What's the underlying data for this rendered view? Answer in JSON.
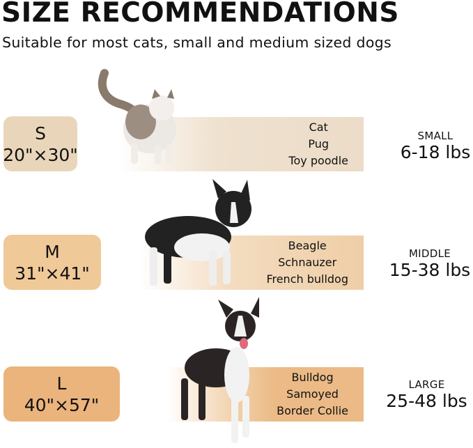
{
  "header": {
    "title": "SIZE RECOMMENDATIONS",
    "subtitle": "Suitable for most cats, small and medium sized dogs"
  },
  "sizes": [
    {
      "letter": "S",
      "dimensions": "20\"×30\"",
      "breeds": [
        "Cat",
        "Pug",
        "Toy poodle"
      ],
      "class": "SMALL",
      "weight": "6-18 lbs",
      "box_color": "#e9d6ba",
      "band_color": "#ecdcc8",
      "animal": "cat-image"
    },
    {
      "letter": "M",
      "dimensions": "31\"×41\"",
      "breeds": [
        "Beagle",
        "Schnauzer",
        "French bulldog"
      ],
      "class": "MIDDLE",
      "weight": "15-38 lbs",
      "box_color": "#efc998",
      "band_color": "#efcea6",
      "animal": "french-bulldog-image"
    },
    {
      "letter": "L",
      "dimensions": "40\"×57\"",
      "breeds": [
        "Bulldog",
        "Samoyed",
        "Border Collie"
      ],
      "class": "LARGE",
      "weight": "25-48 lbs",
      "box_color": "#eab47c",
      "band_color": "#ebba86",
      "animal": "border-collie-image"
    }
  ]
}
